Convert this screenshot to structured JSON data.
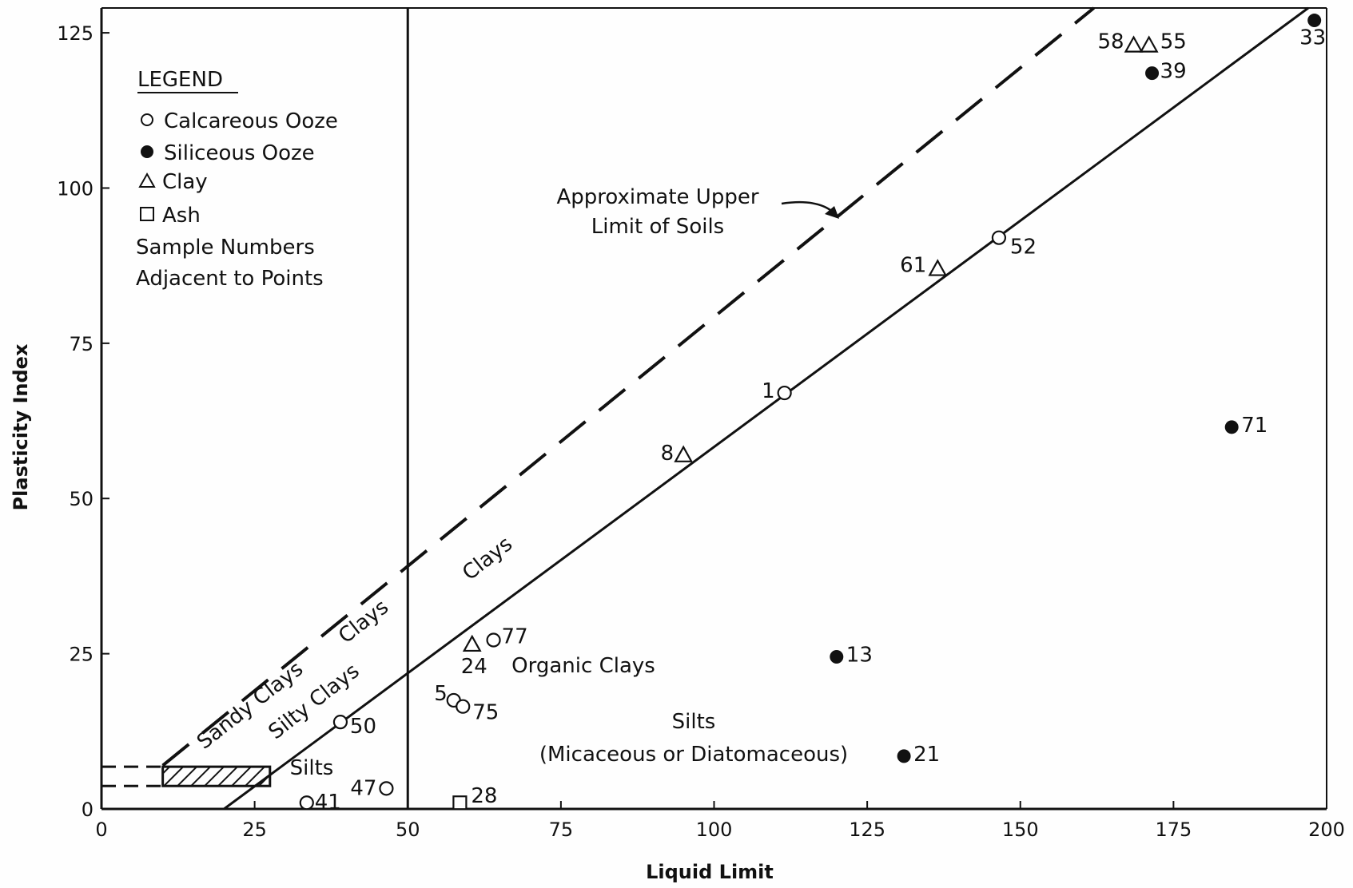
{
  "chart_data": {
    "type": "scatter",
    "xlabel": "Liquid Limit",
    "ylabel": "Plasticity Index",
    "xlim": [
      0,
      200
    ],
    "ylim": [
      0,
      130
    ],
    "xticks": [
      0,
      25,
      50,
      75,
      100,
      125,
      150,
      175,
      200
    ],
    "yticks": [
      0,
      25,
      50,
      75,
      100,
      125
    ],
    "grid": false,
    "legend": {
      "title": "LEGEND",
      "placement": "top-left",
      "items": [
        {
          "marker": "open-circle",
          "label": "Calcareous Ooze"
        },
        {
          "marker": "filled-circle",
          "label": "Siliceous Ooze"
        },
        {
          "marker": "triangle",
          "label": "Clay"
        },
        {
          "marker": "square",
          "label": "Ash"
        }
      ],
      "notes": [
        "Sample Numbers",
        "Adjacent to Points"
      ]
    },
    "series": [
      {
        "name": "Calcareous Ooze",
        "marker": "open-circle",
        "points": [
          {
            "x": 33.5,
            "y": 1,
            "label": "41"
          },
          {
            "x": 46.5,
            "y": 3.3,
            "label": "47"
          },
          {
            "x": 39,
            "y": 14,
            "label": "50"
          },
          {
            "x": 57.5,
            "y": 17.5,
            "label": "5"
          },
          {
            "x": 59,
            "y": 16.5,
            "label": "75"
          },
          {
            "x": 64,
            "y": 27.2,
            "label": "77"
          },
          {
            "x": 111.5,
            "y": 67,
            "label": "1"
          },
          {
            "x": 146.5,
            "y": 92,
            "label": "52"
          }
        ]
      },
      {
        "name": "Siliceous Ooze",
        "marker": "filled-circle",
        "points": [
          {
            "x": 198,
            "y": 127,
            "label": "33"
          },
          {
            "x": 171.5,
            "y": 118.5,
            "label": "39"
          },
          {
            "x": 184.5,
            "y": 61.5,
            "label": "71"
          },
          {
            "x": 120,
            "y": 24.5,
            "label": "13"
          },
          {
            "x": 131,
            "y": 8.5,
            "label": "21"
          }
        ]
      },
      {
        "name": "Clay",
        "marker": "triangle",
        "points": [
          {
            "x": 168.5,
            "y": 123,
            "label": "58"
          },
          {
            "x": 171,
            "y": 123,
            "label": "55"
          },
          {
            "x": 136.5,
            "y": 87,
            "label": "61"
          },
          {
            "x": 95,
            "y": 57,
            "label": "8"
          },
          {
            "x": 60.5,
            "y": 26.5,
            "label": "24"
          }
        ]
      },
      {
        "name": "Ash",
        "marker": "square",
        "points": [
          {
            "x": 58.5,
            "y": 1,
            "label": "28"
          }
        ]
      }
    ],
    "lines": [
      {
        "style": "solid",
        "desc": "A-line",
        "from": [
          20,
          0
        ],
        "to": [
          197,
          129
        ]
      },
      {
        "style": "dashed",
        "desc": "Approximate Upper Limit of Soils",
        "from": [
          10,
          7
        ],
        "to": [
          162,
          129
        ]
      },
      {
        "style": "solid",
        "desc": "vertical",
        "from": [
          50,
          0
        ],
        "to": [
          50,
          129
        ]
      }
    ],
    "annotations": [
      "Approximate Upper",
      "Limit of Soils",
      "Clays",
      "Clays",
      "Sandy Clays",
      "Silty Clays",
      "Silts",
      "Organic Clays",
      "Silts",
      "(Micaceous or Diatomaceous)"
    ]
  }
}
